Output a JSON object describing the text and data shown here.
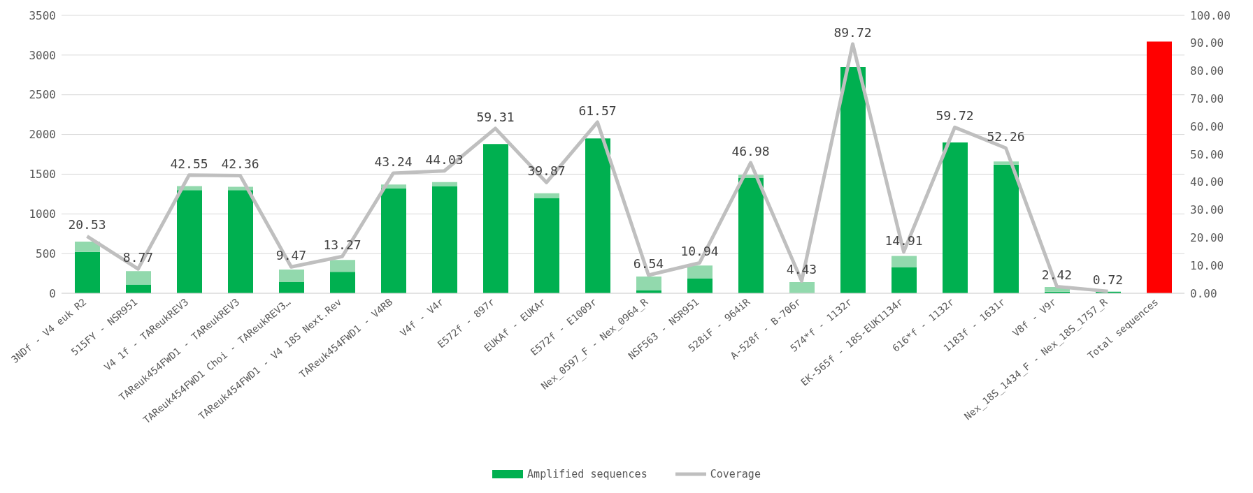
{
  "chart_data": {
    "type": "bar",
    "stacked": true,
    "categories": [
      "3NDf - V4 euk R2",
      "515FY - NSR951",
      "V4 1f - TAReukREV3",
      "TAReuk454FWD1 - TAReukREV3",
      "TAReuk454FWD1 Choi - TAReukREV3…",
      "TAReuk454FWD1 - V4 18S Next.Rev",
      "TAReuk454FWD1 - V4RB",
      "V4f - V4r",
      "E572f - 897r",
      "EUKAf - EUKAr",
      "E572f - E1009r",
      "Nex_0597_F - Nex_0964_R",
      "NSF563 - NSR951",
      "528iF - 964iR",
      "A-528f - B-706r",
      "574*f - 1132r",
      "EK-565f - 18S-EUK1134r",
      "616*f - 1132r",
      "1183f - 1631r",
      "V8f - V9r",
      "Nex_18S_1434_F - Nex_18S_1757_R",
      "Total sequences"
    ],
    "series": [
      {
        "name": "Amplified sequences",
        "color": "#00b050",
        "colors": [
          "#00b050",
          "#00b050",
          "#00b050",
          "#00b050",
          "#00b050",
          "#00b050",
          "#00b050",
          "#00b050",
          "#00b050",
          "#00b050",
          "#00b050",
          "#00b050",
          "#00b050",
          "#00b050",
          "#00b050",
          "#00b050",
          "#00b050",
          "#00b050",
          "#00b050",
          "#00b050",
          "#00b050",
          "#ff0000"
        ],
        "values": [
          520,
          110,
          1300,
          1300,
          140,
          270,
          1320,
          1350,
          1880,
          1200,
          1950,
          40,
          190,
          1450,
          0,
          2850,
          330,
          1900,
          1620,
          20,
          20,
          3170
        ]
      },
      {
        "color": "#92d9ad",
        "values": [
          130,
          170,
          50,
          40,
          160,
          150,
          50,
          50,
          0,
          60,
          0,
          170,
          160,
          40,
          140,
          0,
          140,
          0,
          40,
          60,
          0,
          null
        ]
      },
      {
        "name": "Coverage",
        "type": "line",
        "axis": "y2",
        "color": "#bfbfbf",
        "values": [
          20.53,
          8.77,
          42.55,
          42.36,
          9.47,
          13.27,
          43.24,
          44.03,
          59.31,
          39.87,
          61.57,
          6.54,
          10.94,
          46.98,
          4.43,
          89.72,
          14.91,
          59.72,
          52.26,
          2.42,
          0.72,
          null
        ],
        "value_labels": [
          "20.53",
          "8.77",
          "42.55",
          "42.36",
          "9.47",
          "13.27",
          "43.24",
          "44.03",
          "59.31",
          "39.87",
          "61.57",
          "6.54",
          "10.94",
          "46.98",
          "4.43",
          "89.72",
          "14.91",
          "59.72",
          "52.26",
          "2.42",
          "0.72",
          null
        ]
      }
    ],
    "ylim": [
      0,
      3500
    ],
    "yticks": [
      0,
      500,
      1000,
      1500,
      2000,
      2500,
      3000,
      3500
    ],
    "y2lim": [
      0,
      100
    ],
    "y2ticks": [
      {
        "value": 0,
        "label": "0.00"
      },
      {
        "value": 10,
        "label": "10.00"
      },
      {
        "value": 20,
        "label": "20.00"
      },
      {
        "value": 30,
        "label": "30.00"
      },
      {
        "value": 40,
        "label": "40.00"
      },
      {
        "value": 50,
        "label": "50.00"
      },
      {
        "value": 60,
        "label": "60.00"
      },
      {
        "value": 70,
        "label": "70.00"
      },
      {
        "value": 80,
        "label": "80.00"
      },
      {
        "value": 90,
        "label": "90.00"
      },
      {
        "value": 100,
        "label": "100.00"
      }
    ],
    "grid": "y",
    "legend": "bottom",
    "marker": "none",
    "line_style": "solid"
  }
}
